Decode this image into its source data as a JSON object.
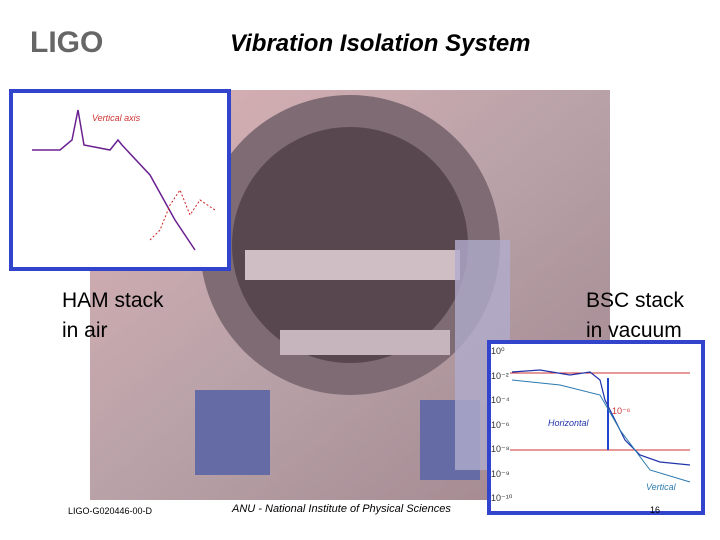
{
  "header": {
    "logo": "LIGO",
    "title": "Vibration Isolation System"
  },
  "labels": {
    "ham": [
      "HAM stack",
      "in air"
    ],
    "bsc": [
      "BSC stack",
      "in vacuum"
    ]
  },
  "inset_left": {
    "annotation": "Vertical axis"
  },
  "inset_right": {
    "yticks": [
      "10⁰",
      "10⁻²",
      "10⁻⁴",
      "10⁻⁶",
      "10⁻⁸",
      "10⁻⁹",
      "10⁻¹⁰"
    ],
    "annotation_horizontal": "Horizontal",
    "annotation_vertical": "Vertical",
    "callout": "10⁻⁶"
  },
  "footer": {
    "doc_id": "LIGO-G020446-00-D",
    "institution": "ANU - National Institute of Physical Sciences",
    "page": "16"
  }
}
